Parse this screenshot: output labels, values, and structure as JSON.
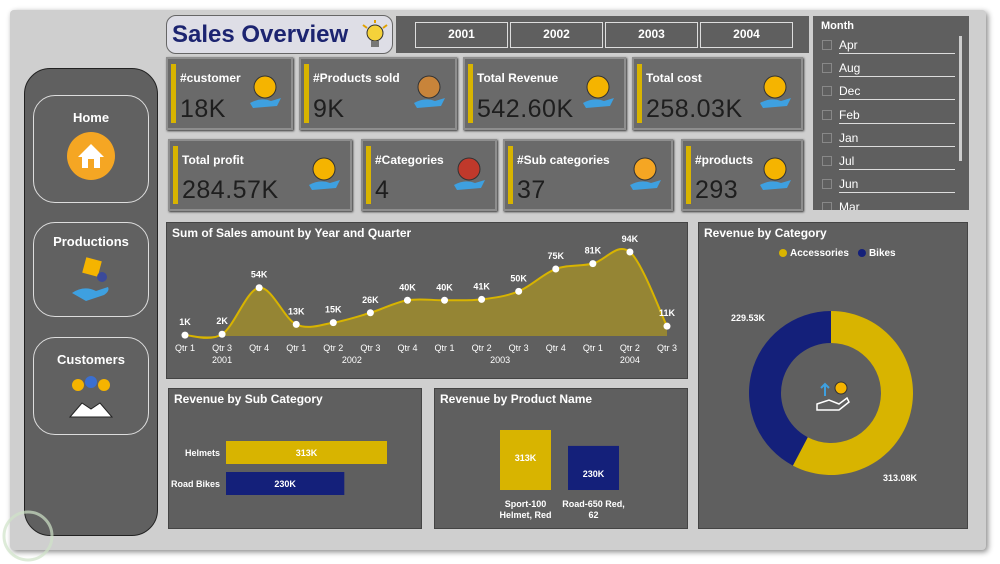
{
  "header": {
    "title": "Sales Overview"
  },
  "year_slicer": {
    "years": [
      "2001",
      "2002",
      "2003",
      "2004"
    ]
  },
  "month_slicer": {
    "title": "Month",
    "items": [
      "Apr",
      "Aug",
      "Dec",
      "Feb",
      "Jan",
      "Jul",
      "Jun",
      "Mar"
    ]
  },
  "nav": {
    "items": [
      "Home",
      "Productions",
      "Customers"
    ]
  },
  "kpis": [
    {
      "label": "#customer",
      "value": "18K"
    },
    {
      "label": "#Products sold",
      "value": "9K"
    },
    {
      "label": "Total Revenue",
      "value": "542.60K"
    },
    {
      "label": "Total cost",
      "value": "258.03K"
    },
    {
      "label": "Total profit",
      "value": "284.57K"
    },
    {
      "label": "#Categories",
      "value": "4"
    },
    {
      "label": "#Sub categories",
      "value": "37"
    },
    {
      "label": "#products",
      "value": "293"
    }
  ],
  "sales_by_quarter": {
    "type": "area",
    "title": "Sum of Sales amount by Year and Quarter",
    "categories": [
      "Qtr 1",
      "Qtr 3",
      "Qtr 4",
      "Qtr 1",
      "Qtr 2",
      "Qtr 3",
      "Qtr 4",
      "Qtr 1",
      "Qtr 2",
      "Qtr 3",
      "Qtr 4",
      "Qtr 1",
      "Qtr 2",
      "Qtr 3"
    ],
    "groups": [
      "2001",
      "2001",
      "2001",
      "2002",
      "2002",
      "2002",
      "2002",
      "2003",
      "2003",
      "2003",
      "2003",
      "2004",
      "2004",
      "2004"
    ],
    "values": [
      1000,
      2000,
      54000,
      13000,
      15000,
      26000,
      40000,
      40000,
      41000,
      50000,
      75000,
      81000,
      94000,
      11000
    ],
    "value_labels": [
      "1K",
      "2K",
      "54K",
      "13K",
      "15K",
      "26K",
      "40K",
      "40K",
      "41K",
      "50K",
      "75K",
      "81K",
      "94K",
      "11K"
    ],
    "color": "#d8b400"
  },
  "revenue_by_category": {
    "type": "donut",
    "title": "Revenue by Category",
    "categories": [
      "Accessories",
      "Bikes"
    ],
    "values": [
      313080,
      229530
    ],
    "value_labels": [
      "313.08K",
      "229.53K"
    ],
    "colors": [
      "#d8b400",
      "#14207a"
    ]
  },
  "revenue_by_subcategory": {
    "type": "hbar",
    "title": "Revenue by Sub Category",
    "categories": [
      "Helmets",
      "Road Bikes"
    ],
    "values": [
      313000,
      230000
    ],
    "value_labels": [
      "313K",
      "230K"
    ],
    "colors": [
      "#d8b400",
      "#14207a"
    ]
  },
  "revenue_by_product": {
    "type": "bar",
    "title": "Revenue by Product Name",
    "categories": [
      "Sport-100 Helmet, Red",
      "Road-650 Red, 62"
    ],
    "values": [
      313000,
      230000
    ],
    "value_labels": [
      "313K",
      "230K"
    ],
    "colors": [
      "#d8b400",
      "#14207a"
    ]
  }
}
